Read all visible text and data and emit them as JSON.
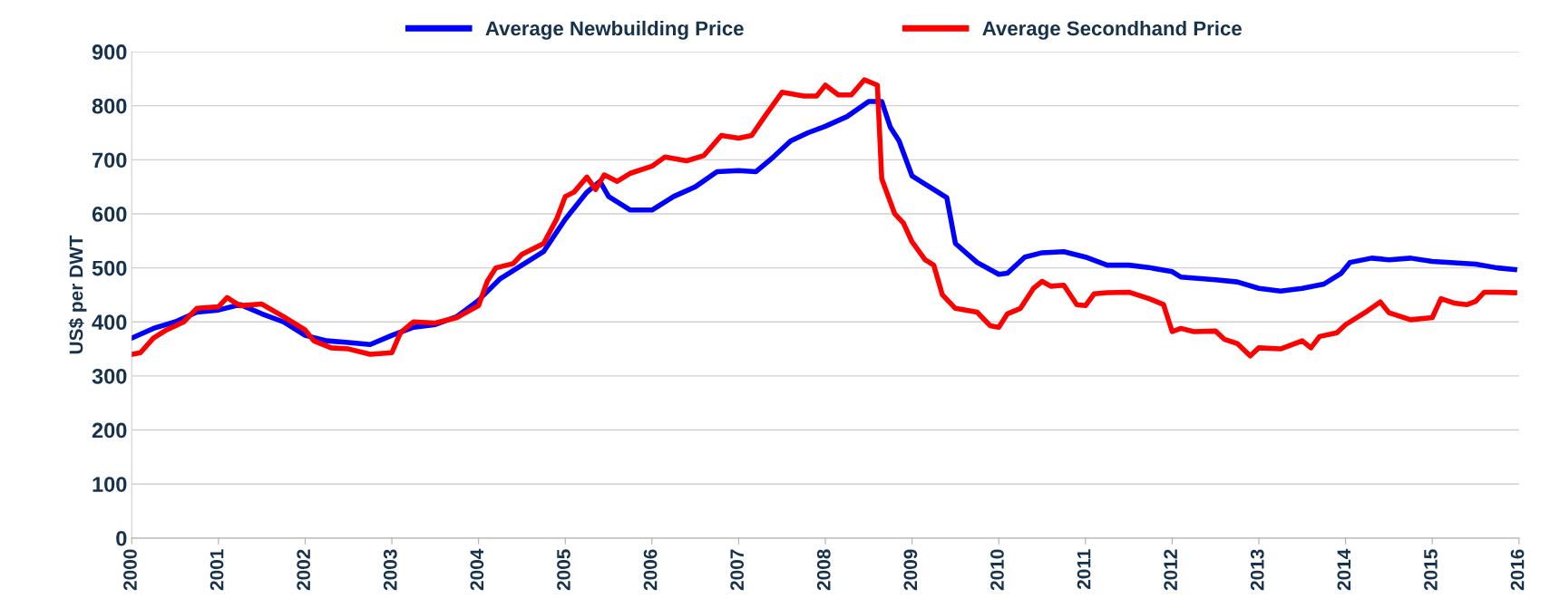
{
  "chart_data": {
    "type": "line",
    "ylabel": "US$ per DWT",
    "xlim": [
      2000,
      2016
    ],
    "xticks": [
      2000,
      2001,
      2002,
      2003,
      2004,
      2005,
      2006,
      2007,
      2008,
      2009,
      2010,
      2011,
      2012,
      2013,
      2014,
      2015,
      2016
    ],
    "ylim": [
      0,
      900
    ],
    "yticks": [
      0,
      100,
      200,
      300,
      400,
      500,
      600,
      700,
      800,
      900
    ],
    "grid": "y",
    "legend": "top",
    "line_style": "solid",
    "marker": "none",
    "series": [
      {
        "name": "Average Newbuilding Price",
        "color": "#0000ff",
        "x": [
          2000.0,
          2000.25,
          2000.5,
          2000.75,
          2001.0,
          2001.25,
          2001.5,
          2001.75,
          2002.0,
          2002.25,
          2002.5,
          2002.75,
          2003.0,
          2003.25,
          2003.5,
          2003.75,
          2004.0,
          2004.25,
          2004.5,
          2004.75,
          2005.0,
          2005.25,
          2005.4,
          2005.5,
          2005.75,
          2006.0,
          2006.25,
          2006.5,
          2006.75,
          2007.0,
          2007.2,
          2007.4,
          2007.6,
          2007.8,
          2008.0,
          2008.25,
          2008.5,
          2008.65,
          2008.75,
          2008.85,
          2009.0,
          2009.25,
          2009.4,
          2009.5,
          2009.75,
          2010.0,
          2010.1,
          2010.3,
          2010.5,
          2010.75,
          2011.0,
          2011.25,
          2011.5,
          2011.75,
          2012.0,
          2012.1,
          2012.5,
          2012.75,
          2013.0,
          2013.25,
          2013.5,
          2013.75,
          2013.95,
          2014.05,
          2014.3,
          2014.5,
          2014.75,
          2015.0,
          2015.5,
          2015.75,
          2015.95
        ],
        "values": [
          370,
          388,
          400,
          418,
          422,
          432,
          415,
          400,
          375,
          365,
          362,
          358,
          375,
          390,
          395,
          410,
          440,
          480,
          505,
          530,
          590,
          640,
          660,
          632,
          607,
          607,
          632,
          650,
          678,
          680,
          678,
          705,
          735,
          750,
          762,
          780,
          808,
          808,
          760,
          735,
          670,
          645,
          630,
          545,
          510,
          488,
          490,
          520,
          528,
          530,
          520,
          505,
          505,
          500,
          493,
          483,
          478,
          474,
          462,
          457,
          462,
          470,
          490,
          510,
          518,
          515,
          518,
          512,
          507,
          500,
          497
        ]
      },
      {
        "name": "Average Secondhand Price",
        "color": "#ff0000",
        "x": [
          2000.0,
          2000.1,
          2000.25,
          2000.4,
          2000.6,
          2000.75,
          2001.0,
          2001.1,
          2001.25,
          2001.5,
          2001.75,
          2002.0,
          2002.1,
          2002.3,
          2002.5,
          2002.75,
          2003.0,
          2003.1,
          2003.25,
          2003.5,
          2003.75,
          2004.0,
          2004.1,
          2004.2,
          2004.4,
          2004.5,
          2004.75,
          2004.9,
          2005.0,
          2005.1,
          2005.25,
          2005.35,
          2005.45,
          2005.6,
          2005.75,
          2006.0,
          2006.15,
          2006.4,
          2006.6,
          2006.8,
          2007.0,
          2007.15,
          2007.3,
          2007.5,
          2007.75,
          2007.9,
          2008.0,
          2008.15,
          2008.3,
          2008.45,
          2008.6,
          2008.65,
          2008.8,
          2008.9,
          2009.0,
          2009.15,
          2009.25,
          2009.35,
          2009.5,
          2009.75,
          2009.9,
          2010.0,
          2010.1,
          2010.25,
          2010.4,
          2010.5,
          2010.6,
          2010.75,
          2010.9,
          2011.0,
          2011.1,
          2011.25,
          2011.5,
          2011.75,
          2011.9,
          2012.0,
          2012.1,
          2012.25,
          2012.5,
          2012.6,
          2012.75,
          2012.9,
          2013.0,
          2013.25,
          2013.5,
          2013.6,
          2013.7,
          2013.9,
          2014.0,
          2014.25,
          2014.4,
          2014.5,
          2014.75,
          2015.0,
          2015.1,
          2015.25,
          2015.4,
          2015.5,
          2015.6,
          2015.75,
          2015.95
        ],
        "values": [
          340,
          343,
          370,
          385,
          400,
          425,
          428,
          445,
          430,
          433,
          410,
          385,
          365,
          352,
          350,
          340,
          343,
          380,
          400,
          398,
          408,
          430,
          475,
          500,
          508,
          525,
          545,
          590,
          632,
          640,
          668,
          645,
          672,
          660,
          675,
          688,
          705,
          698,
          708,
          745,
          740,
          745,
          780,
          825,
          818,
          818,
          838,
          820,
          820,
          848,
          838,
          665,
          600,
          583,
          548,
          515,
          505,
          450,
          425,
          418,
          393,
          390,
          415,
          425,
          462,
          475,
          466,
          468,
          432,
          430,
          452,
          454,
          455,
          442,
          432,
          382,
          388,
          382,
          383,
          368,
          360,
          337,
          352,
          350,
          365,
          352,
          373,
          380,
          395,
          420,
          437,
          417,
          404,
          408,
          443,
          435,
          432,
          438,
          455,
          455,
          454
        ]
      }
    ]
  }
}
